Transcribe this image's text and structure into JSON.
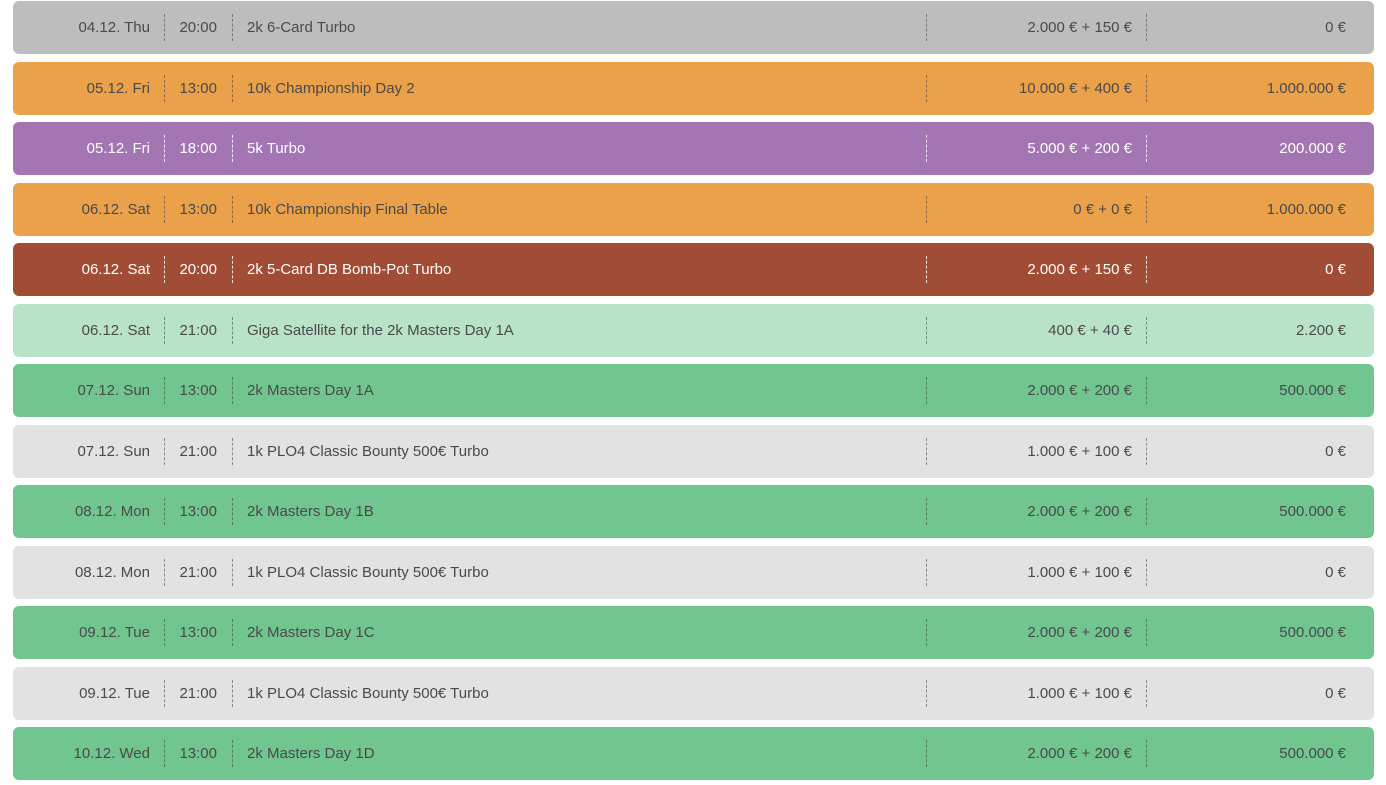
{
  "colors": {
    "gray": "#bdbdbd",
    "orange": "#eba04a",
    "purple": "#a375b3",
    "brown": "#a14d36",
    "light_green": "#b9e3c8",
    "green": "#71c58e",
    "light_gray": "#e2e2e2"
  },
  "rows": [
    {
      "date": "04.12. Thu",
      "time": "20:00",
      "name": "2k 6-Card Turbo",
      "buyin": "2.000 € + 150 €",
      "guarantee": "0 €",
      "color": "#bdbdbd",
      "text_color": "dark"
    },
    {
      "date": "05.12. Fri",
      "time": "13:00",
      "name": "10k Championship Day 2",
      "buyin": "10.000 € + 400 €",
      "guarantee": "1.000.000 €",
      "color": "#eba04a",
      "text_color": "dark"
    },
    {
      "date": "05.12. Fri",
      "time": "18:00",
      "name": "5k Turbo",
      "buyin": "5.000 € + 200 €",
      "guarantee": "200.000 €",
      "color": "#a375b3",
      "text_color": "light"
    },
    {
      "date": "06.12. Sat",
      "time": "13:00",
      "name": "10k Championship Final Table",
      "buyin": "0 € + 0 €",
      "guarantee": "1.000.000 €",
      "color": "#eba04a",
      "text_color": "dark"
    },
    {
      "date": "06.12. Sat",
      "time": "20:00",
      "name": "2k 5-Card DB Bomb-Pot Turbo",
      "buyin": "2.000 € + 150 €",
      "guarantee": "0 €",
      "color": "#a14d36",
      "text_color": "light"
    },
    {
      "date": "06.12. Sat",
      "time": "21:00",
      "name": "Giga Satellite for the 2k Masters Day 1A",
      "buyin": "400 € + 40 €",
      "guarantee": "2.200 €",
      "color": "#b9e3c8",
      "text_color": "dark"
    },
    {
      "date": "07.12. Sun",
      "time": "13:00",
      "name": "2k Masters Day 1A",
      "buyin": "2.000 € + 200 €",
      "guarantee": "500.000 €",
      "color": "#71c58e",
      "text_color": "dark"
    },
    {
      "date": "07.12. Sun",
      "time": "21:00",
      "name": "1k PLO4 Classic Bounty 500€ Turbo",
      "buyin": "1.000 € + 100 €",
      "guarantee": "0 €",
      "color": "#e2e2e2",
      "text_color": "dark"
    },
    {
      "date": "08.12. Mon",
      "time": "13:00",
      "name": "2k Masters Day 1B",
      "buyin": "2.000 € + 200 €",
      "guarantee": "500.000 €",
      "color": "#71c58e",
      "text_color": "dark"
    },
    {
      "date": "08.12. Mon",
      "time": "21:00",
      "name": "1k PLO4 Classic Bounty 500€ Turbo",
      "buyin": "1.000 € + 100 €",
      "guarantee": "0 €",
      "color": "#e2e2e2",
      "text_color": "dark"
    },
    {
      "date": "09.12. Tue",
      "time": "13:00",
      "name": "2k Masters Day 1C",
      "buyin": "2.000 € + 200 €",
      "guarantee": "500.000 €",
      "color": "#71c58e",
      "text_color": "dark"
    },
    {
      "date": "09.12. Tue",
      "time": "21:00",
      "name": "1k PLO4 Classic Bounty 500€ Turbo",
      "buyin": "1.000 € + 100 €",
      "guarantee": "0 €",
      "color": "#e2e2e2",
      "text_color": "dark"
    },
    {
      "date": "10.12. Wed",
      "time": "13:00",
      "name": "2k Masters Day 1D",
      "buyin": "2.000 € + 200 €",
      "guarantee": "500.000 €",
      "color": "#71c58e",
      "text_color": "dark"
    }
  ]
}
